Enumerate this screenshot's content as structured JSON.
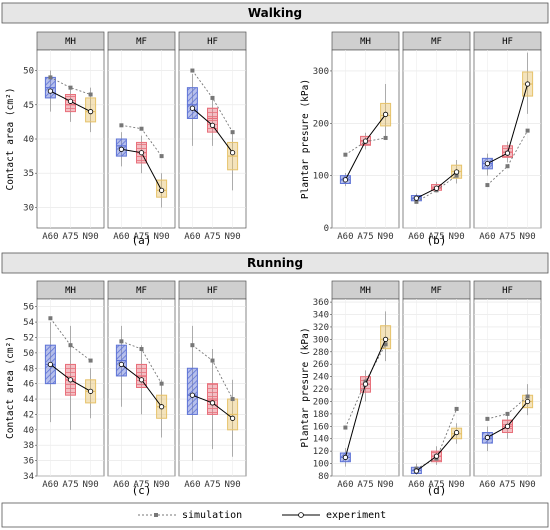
{
  "sections": [
    {
      "title": "Walking"
    },
    {
      "title": "Running"
    }
  ],
  "legend": {
    "simulation": "simulation",
    "experiment": "experiment"
  },
  "colors": {
    "A60": "#5f74d6",
    "A75": "#e8707b",
    "N90": "#e6c26a",
    "strip": "#cfcfcf",
    "panel": "#ffffff"
  },
  "chart_data": [
    {
      "type": "box",
      "tag": "(a)",
      "section": "Walking",
      "ylabel": "Contact area (cm²)",
      "ylim": [
        27,
        53
      ],
      "yticks": [
        30,
        35,
        40,
        45,
        50
      ],
      "facets": [
        {
          "name": "MH",
          "boxes": {
            "A60": {
              "q1": 46,
              "median": 47.5,
              "q3": 49,
              "min": 44,
              "max": 50
            },
            "A75": {
              "q1": 44,
              "median": 45,
              "q3": 46.5,
              "min": 42.5,
              "max": 47.5
            },
            "N90": {
              "q1": 42.5,
              "median": 44,
              "q3": 46,
              "min": 41,
              "max": 47.5
            }
          },
          "experiment": [
            47.0,
            45.5,
            44.0
          ],
          "simulation": [
            49.0,
            47.5,
            46.5
          ]
        },
        {
          "name": "MF",
          "boxes": {
            "A60": {
              "q1": 37.5,
              "median": 39,
              "q3": 40,
              "min": 36,
              "max": 41
            },
            "A75": {
              "q1": 36.5,
              "median": 38,
              "q3": 39.5,
              "min": 35,
              "max": 40.5
            },
            "N90": {
              "q1": 31.5,
              "median": 32.5,
              "q3": 34,
              "min": 30,
              "max": 35
            }
          },
          "experiment": [
            38.5,
            38.0,
            32.5
          ],
          "simulation": [
            42.0,
            41.5,
            37.5
          ]
        },
        {
          "name": "HF",
          "boxes": {
            "A60": {
              "q1": 43,
              "median": 45,
              "q3": 47.5,
              "min": 39,
              "max": 49.5
            },
            "A75": {
              "q1": 41,
              "median": 43,
              "q3": 44.5,
              "min": 39,
              "max": 46
            },
            "N90": {
              "q1": 35.5,
              "median": 37.5,
              "q3": 39.5,
              "min": 32.5,
              "max": 41
            }
          },
          "experiment": [
            44.5,
            42.0,
            38.0
          ],
          "simulation": [
            50.0,
            46.0,
            41.0
          ]
        }
      ]
    },
    {
      "type": "box",
      "tag": "(b)",
      "section": "Walking",
      "ylabel": "Plantar presure (kPa)",
      "ylim": [
        0,
        340
      ],
      "yticks": [
        0,
        100,
        200,
        300
      ],
      "facets": [
        {
          "name": "MH",
          "boxes": {
            "A60": {
              "q1": 85,
              "median": 92,
              "q3": 100,
              "min": 80,
              "max": 105
            },
            "A75": {
              "q1": 158,
              "median": 166,
              "q3": 175,
              "min": 150,
              "max": 182
            },
            "N90": {
              "q1": 195,
              "median": 215,
              "q3": 238,
              "min": 170,
              "max": 275
            }
          },
          "experiment": [
            92,
            166,
            217
          ],
          "simulation": [
            140,
            165,
            172
          ]
        },
        {
          "name": "MF",
          "boxes": {
            "A60": {
              "q1": 52,
              "median": 57,
              "q3": 62,
              "min": 48,
              "max": 66
            },
            "A75": {
              "q1": 72,
              "median": 78,
              "q3": 83,
              "min": 68,
              "max": 88
            },
            "N90": {
              "q1": 95,
              "median": 108,
              "q3": 120,
              "min": 85,
              "max": 130
            }
          },
          "experiment": [
            57,
            76,
            107
          ],
          "simulation": [
            50,
            72,
            100
          ]
        },
        {
          "name": "HF",
          "boxes": {
            "A60": {
              "q1": 113,
              "median": 123,
              "q3": 133,
              "min": 100,
              "max": 142
            },
            "A75": {
              "q1": 135,
              "median": 145,
              "q3": 157,
              "min": 125,
              "max": 165
            },
            "N90": {
              "q1": 252,
              "median": 275,
              "q3": 298,
              "min": 218,
              "max": 335
            }
          },
          "experiment": [
            123,
            143,
            275
          ],
          "simulation": [
            82,
            118,
            186
          ]
        }
      ]
    },
    {
      "type": "box",
      "tag": "(c)",
      "section": "Running",
      "ylabel": "Contact area (cm²)",
      "ylim": [
        34,
        57
      ],
      "yticks": [
        34,
        36,
        38,
        40,
        42,
        44,
        46,
        48,
        50,
        52,
        54,
        56
      ],
      "facets": [
        {
          "name": "MH",
          "boxes": {
            "A60": {
              "q1": 46,
              "median": 48.5,
              "q3": 51,
              "min": 41,
              "max": 54
            },
            "A75": {
              "q1": 44.5,
              "median": 46.5,
              "q3": 48.5,
              "min": 40,
              "max": 53.5
            },
            "N90": {
              "q1": 43.5,
              "median": 45,
              "q3": 46.5,
              "min": 41.5,
              "max": 48
            }
          },
          "experiment": [
            48.5,
            46.5,
            45.0
          ],
          "simulation": [
            54.5,
            51.0,
            49.0
          ]
        },
        {
          "name": "MF",
          "boxes": {
            "A60": {
              "q1": 47,
              "median": 49,
              "q3": 51,
              "min": 43,
              "max": 53.5
            },
            "A75": {
              "q1": 45.5,
              "median": 47,
              "q3": 48.5,
              "min": 42,
              "max": 51
            },
            "N90": {
              "q1": 41.5,
              "median": 43,
              "q3": 44.5,
              "min": 39,
              "max": 46.5
            }
          },
          "experiment": [
            48.5,
            46.5,
            43.0
          ],
          "simulation": [
            51.5,
            50.5,
            46.0
          ]
        },
        {
          "name": "HF",
          "boxes": {
            "A60": {
              "q1": 42,
              "median": 44.5,
              "q3": 48,
              "min": 36,
              "max": 53.5
            },
            "A75": {
              "q1": 42,
              "median": 44,
              "q3": 46,
              "min": 37.5,
              "max": 50.5
            },
            "N90": {
              "q1": 40,
              "median": 42,
              "q3": 44,
              "min": 36.5,
              "max": 46.5
            }
          },
          "experiment": [
            44.5,
            43.5,
            41.5
          ],
          "simulation": [
            51.0,
            49.0,
            44.0
          ]
        }
      ]
    },
    {
      "type": "box",
      "tag": "(d)",
      "section": "Running",
      "ylabel": "Plantar presure (kPa)",
      "ylim": [
        80,
        365
      ],
      "yticks": [
        80,
        100,
        120,
        140,
        160,
        180,
        200,
        220,
        240,
        260,
        280,
        300,
        320,
        340,
        360
      ],
      "facets": [
        {
          "name": "MH",
          "boxes": {
            "A60": {
              "q1": 103,
              "median": 110,
              "q3": 117,
              "min": 95,
              "max": 125
            },
            "A75": {
              "q1": 215,
              "median": 228,
              "q3": 240,
              "min": 200,
              "max": 250
            },
            "N90": {
              "q1": 285,
              "median": 300,
              "q3": 322,
              "min": 265,
              "max": 345
            }
          },
          "experiment": [
            110,
            228,
            300
          ],
          "simulation": [
            158,
            232,
            292
          ]
        },
        {
          "name": "MF",
          "boxes": {
            "A60": {
              "q1": 84,
              "median": 89,
              "q3": 94,
              "min": 82,
              "max": 100
            },
            "A75": {
              "q1": 103,
              "median": 112,
              "q3": 120,
              "min": 98,
              "max": 128
            },
            "N90": {
              "q1": 140,
              "median": 148,
              "q3": 157,
              "min": 132,
              "max": 165
            }
          },
          "experiment": [
            88,
            112,
            150
          ],
          "simulation": [
            92,
            108,
            188
          ]
        },
        {
          "name": "HF",
          "boxes": {
            "A60": {
              "q1": 133,
              "median": 140,
              "q3": 150,
              "min": 120,
              "max": 160
            },
            "A75": {
              "q1": 150,
              "median": 160,
              "q3": 170,
              "min": 140,
              "max": 182
            },
            "N90": {
              "q1": 190,
              "median": 200,
              "q3": 210,
              "min": 178,
              "max": 228
            }
          },
          "experiment": [
            142,
            160,
            200
          ],
          "simulation": [
            172,
            180,
            208
          ]
        }
      ]
    }
  ]
}
